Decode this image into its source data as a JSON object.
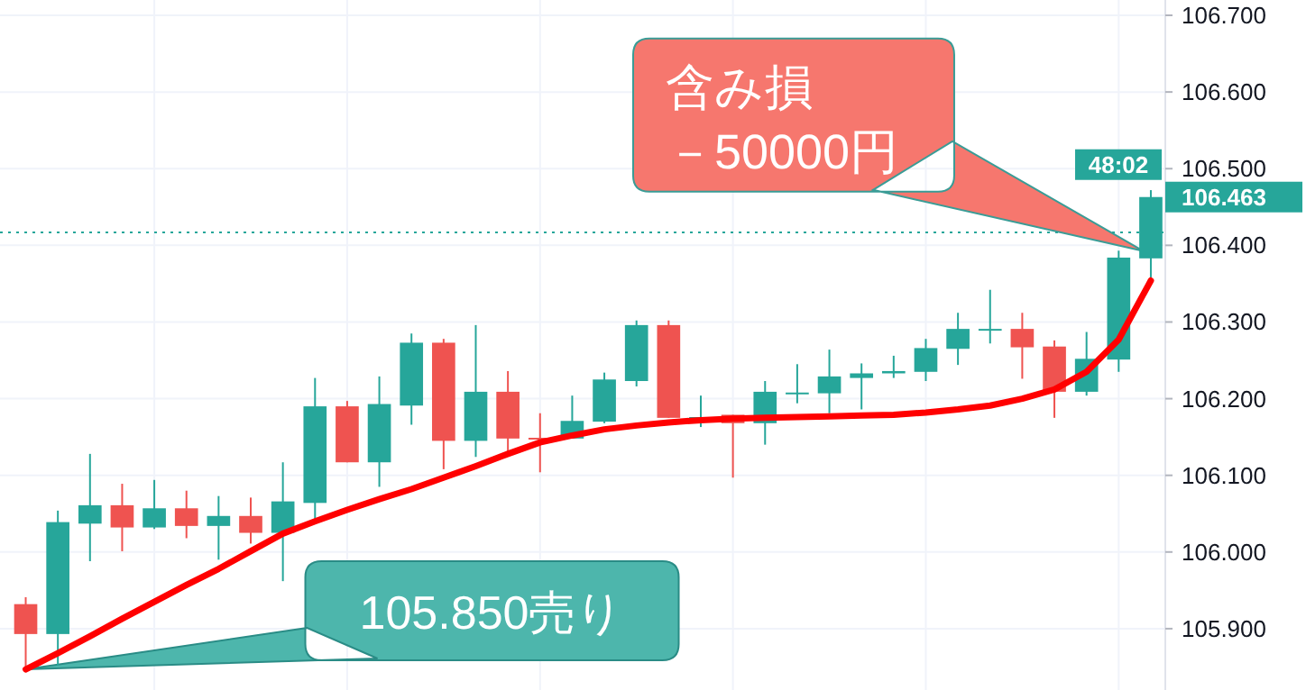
{
  "chart_data": {
    "type": "candlestick",
    "categories": [
      null,
      null,
      null,
      null,
      null,
      null,
      null,
      null,
      null,
      null,
      null,
      null,
      null,
      null,
      null,
      null,
      null,
      null,
      null,
      null,
      null,
      null,
      null,
      null,
      null,
      null,
      null,
      null,
      null,
      null,
      null,
      null,
      null,
      null,
      null,
      null
    ],
    "ohlc": [
      [
        105.932,
        105.941,
        105.847,
        105.893
      ],
      [
        105.893,
        106.054,
        105.852,
        106.039
      ],
      [
        106.037,
        106.128,
        105.988,
        106.061
      ],
      [
        106.061,
        106.089,
        106.001,
        106.032
      ],
      [
        106.032,
        106.094,
        106.03,
        106.057
      ],
      [
        106.057,
        106.08,
        106.018,
        106.034
      ],
      [
        106.034,
        106.073,
        105.99,
        106.047
      ],
      [
        106.047,
        106.071,
        106.011,
        106.025
      ],
      [
        106.025,
        106.117,
        105.962,
        106.066
      ],
      [
        106.064,
        106.227,
        106.043,
        106.19
      ],
      [
        106.19,
        106.197,
        106.117,
        106.117
      ],
      [
        106.117,
        106.229,
        106.085,
        106.193
      ],
      [
        106.191,
        106.285,
        106.166,
        106.273
      ],
      [
        106.273,
        106.278,
        106.108,
        106.145
      ],
      [
        106.145,
        106.296,
        106.124,
        106.209
      ],
      [
        106.209,
        106.236,
        106.13,
        106.148
      ],
      [
        106.149,
        106.181,
        106.104,
        106.148
      ],
      [
        106.148,
        106.204,
        106.148,
        106.171
      ],
      [
        106.17,
        106.234,
        106.168,
        106.225
      ],
      [
        106.223,
        106.302,
        106.216,
        106.296
      ],
      [
        106.296,
        106.302,
        106.175,
        106.175
      ],
      [
        106.175,
        106.204,
        106.163,
        106.176
      ],
      [
        106.179,
        106.179,
        106.097,
        106.168
      ],
      [
        106.168,
        106.223,
        106.14,
        106.209
      ],
      [
        106.207,
        106.245,
        106.194,
        106.208
      ],
      [
        106.207,
        106.264,
        106.181,
        106.229
      ],
      [
        106.227,
        106.246,
        106.186,
        106.233
      ],
      [
        106.233,
        106.256,
        106.227,
        106.236
      ],
      [
        106.235,
        106.278,
        106.223,
        106.266
      ],
      [
        106.265,
        106.312,
        106.244,
        106.291
      ],
      [
        106.29,
        106.342,
        106.272,
        106.291
      ],
      [
        106.291,
        106.312,
        106.226,
        106.267
      ],
      [
        106.268,
        106.276,
        106.175,
        106.209
      ],
      [
        106.209,
        106.287,
        106.204,
        106.252
      ],
      [
        106.251,
        106.393,
        106.235,
        106.384
      ],
      [
        106.383,
        106.472,
        106.358,
        106.463
      ]
    ],
    "series": [
      {
        "type": "line",
        "color": "#ff0000",
        "values": [
          105.847,
          105.868,
          105.89,
          105.913,
          105.935,
          105.957,
          105.978,
          106.001,
          106.024,
          106.04,
          106.055,
          106.069,
          106.082,
          106.097,
          106.112,
          106.128,
          106.143,
          106.152,
          106.16,
          106.165,
          106.169,
          106.172,
          106.174,
          106.175,
          106.176,
          106.177,
          106.178,
          106.179,
          106.182,
          106.186,
          106.191,
          106.2,
          106.212,
          106.235,
          106.277,
          106.354
        ]
      }
    ],
    "ylim": [
      105.82,
      106.72
    ],
    "yticks": [
      {
        "value": 105.9,
        "label": "105.900"
      },
      {
        "value": 106.0,
        "label": "106.000"
      },
      {
        "value": 106.1,
        "label": "106.100"
      },
      {
        "value": 106.2,
        "label": "106.200"
      },
      {
        "value": 106.3,
        "label": "106.300"
      },
      {
        "value": 106.4,
        "label": "106.400"
      },
      {
        "value": 106.5,
        "label": "106.500"
      },
      {
        "value": 106.6,
        "label": "106.600"
      },
      {
        "value": 106.7,
        "label": "106.700"
      }
    ],
    "grid": true,
    "ref_lines": [
      {
        "axis": "y",
        "value": 106.417,
        "color": "#26a69a",
        "line_style": "dotted"
      }
    ],
    "annotations": [
      "含み損",
      "－50000円",
      "105.850売り",
      "106.463",
      "48:02"
    ]
  }
}
